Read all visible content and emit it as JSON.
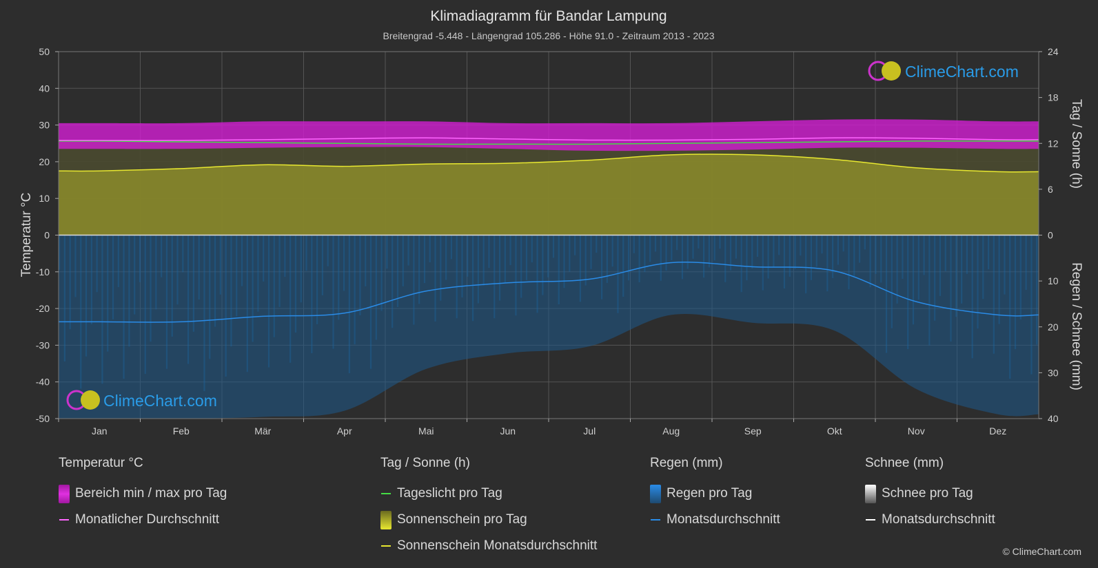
{
  "title": "Klimadiagramm für Bandar Lampung",
  "subtitle": "Breitengrad -5.448 - Längengrad 105.286 - Höhe 91.0 - Zeitraum 2013 - 2023",
  "watermark": "ClimeChart.com",
  "copyright": "© ClimeChart.com",
  "colors": {
    "background": "#2d2d2d",
    "temp_range": "#d21ed2",
    "temp_avg": "#ff66ff",
    "daylight": "#44dd44",
    "sunshine_fill": "#8c8c2a",
    "sunshine_avg": "#e8e830",
    "rain_fill": "#1e5a8c",
    "rain_avg": "#2a8ce8",
    "snow_avg": "#ffffff",
    "watermark_text": "#2a9ce8"
  },
  "legend": {
    "temperature": {
      "title": "Temperatur °C",
      "range_label": "Bereich min / max pro Tag",
      "avg_label": "Monatlicher Durchschnitt"
    },
    "sun": {
      "title": "Tag / Sonne (h)",
      "daylight_label": "Tageslicht pro Tag",
      "sunshine_label": "Sonnenschein pro Tag",
      "sunshine_avg_label": "Sonnenschein Monatsdurchschnitt"
    },
    "rain": {
      "title": "Regen (mm)",
      "rain_label": "Regen pro Tag",
      "avg_label": "Monatsdurchschnitt"
    },
    "snow": {
      "title": "Schnee (mm)",
      "snow_label": "Schnee pro Tag",
      "avg_label": "Monatsdurchschnitt"
    }
  },
  "chart_data": {
    "type": "area",
    "categories": [
      "Jan",
      "Feb",
      "Mär",
      "Apr",
      "Mai",
      "Jun",
      "Jul",
      "Aug",
      "Sep",
      "Okt",
      "Nov",
      "Dez"
    ],
    "ylabel_left": "Temperatur °C",
    "ylabel_right_top": "Tag / Sonne (h)",
    "ylabel_right_bottom": "Regen / Schnee (mm)",
    "y_left_ticks": [
      50,
      40,
      30,
      20,
      10,
      0,
      -10,
      -20,
      -30,
      -40,
      -50
    ],
    "y_right_top_ticks": [
      24,
      18,
      12,
      6,
      0
    ],
    "y_right_bottom_ticks": [
      0,
      10,
      20,
      30,
      40
    ],
    "ylim_left": [
      -50,
      50
    ],
    "ylim_sun_hours": [
      0,
      24
    ],
    "ylim_rain_mm": [
      0,
      40
    ],
    "grid": true,
    "series": [
      {
        "name": "Bereich min / max pro Tag",
        "kind": "temp_range",
        "min": [
          23.5,
          23.5,
          23.8,
          24.0,
          24.0,
          23.5,
          23.0,
          23.0,
          23.3,
          23.8,
          23.8,
          23.5
        ],
        "max": [
          30.5,
          30.5,
          31.0,
          31.0,
          31.0,
          30.5,
          30.5,
          30.5,
          31.0,
          31.5,
          31.5,
          31.0
        ]
      },
      {
        "name": "Monatlicher Durchschnitt",
        "kind": "temp_avg",
        "values": [
          25.8,
          25.8,
          26.0,
          26.3,
          26.5,
          26.2,
          25.9,
          25.9,
          26.1,
          26.5,
          26.4,
          26.0
        ]
      },
      {
        "name": "Tageslicht pro Tag",
        "kind": "daylight",
        "unit": "h",
        "values": [
          12.3,
          12.2,
          12.1,
          12.0,
          11.9,
          11.9,
          11.9,
          12.0,
          12.1,
          12.2,
          12.3,
          12.3
        ]
      },
      {
        "name": "Sonnenschein Monatsdurchschnitt",
        "kind": "sunshine_avg",
        "unit": "h",
        "values": [
          8.4,
          8.7,
          9.2,
          9.0,
          9.3,
          9.4,
          9.8,
          10.5,
          10.5,
          9.9,
          8.8,
          8.3
        ]
      },
      {
        "name": "Regen Monatsdurchschnitt",
        "kind": "rain_avg",
        "unit": "mm",
        "values": [
          18.9,
          18.9,
          17.7,
          17.0,
          12.2,
          10.4,
          9.6,
          6.0,
          6.9,
          7.8,
          14.5,
          17.4
        ]
      }
    ]
  }
}
